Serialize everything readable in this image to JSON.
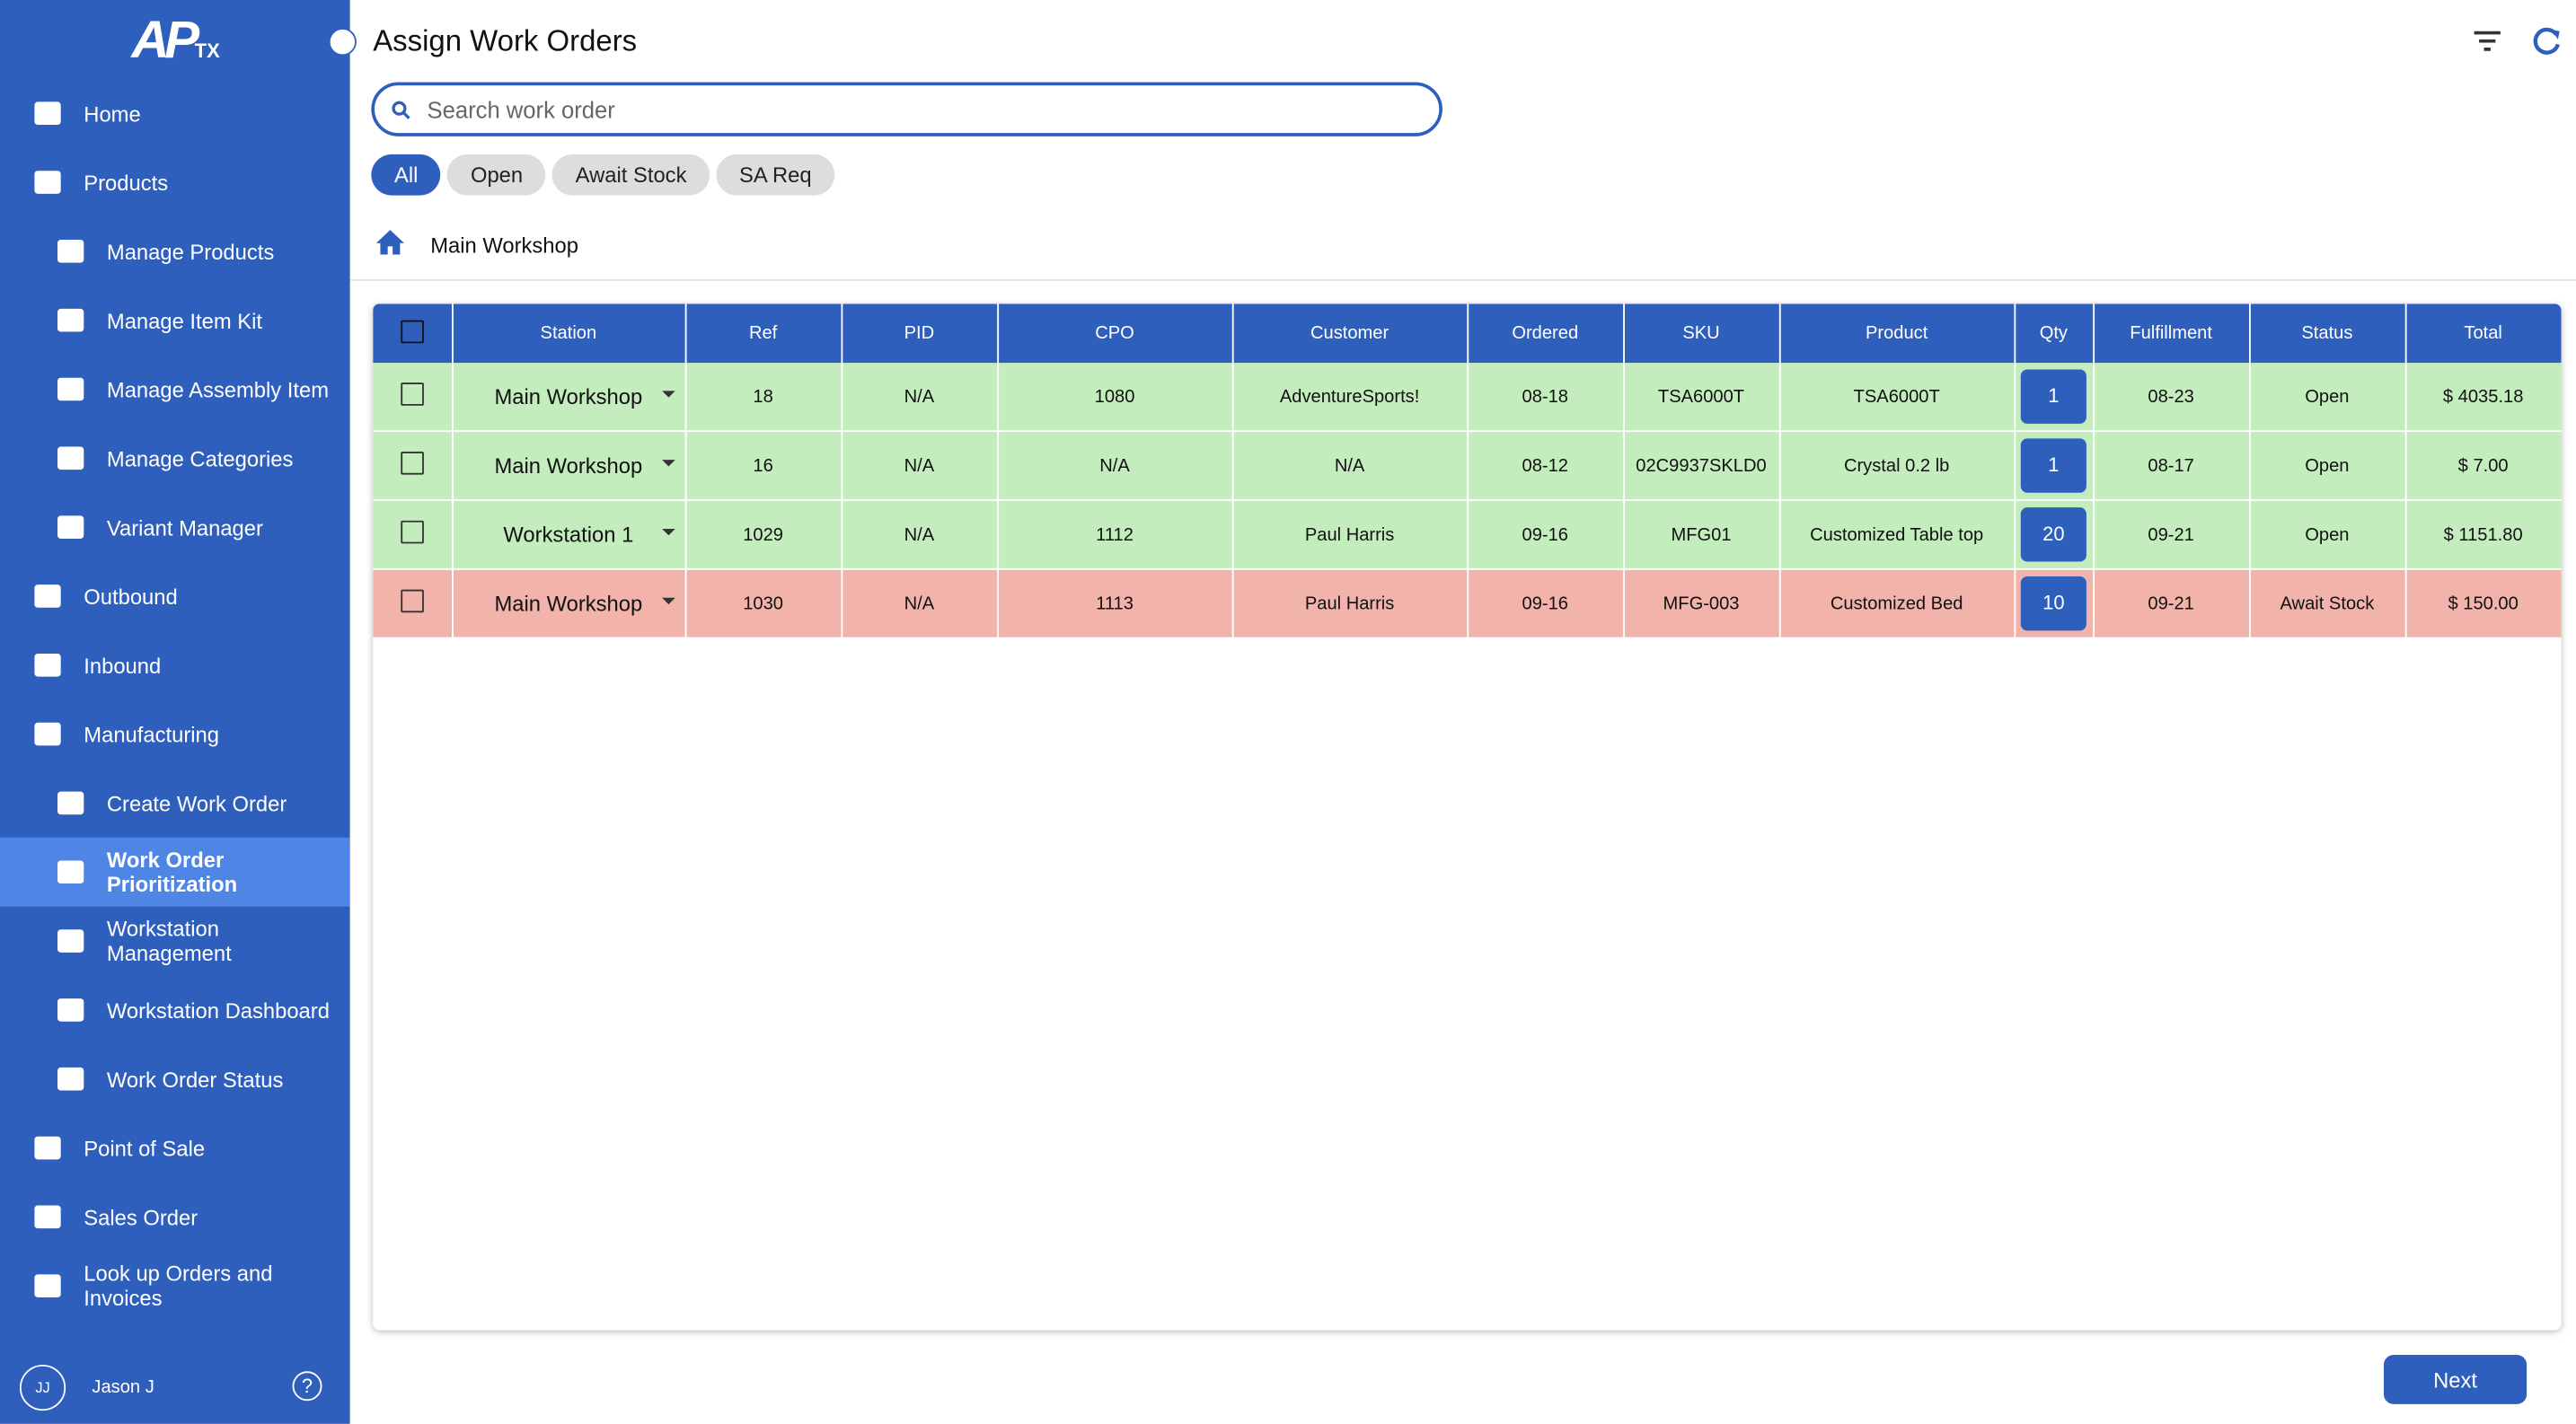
{
  "sidebar": {
    "logo": "AP",
    "logo_sub": "TX",
    "nav": [
      {
        "label": "Home"
      },
      {
        "label": "Products",
        "children": [
          "Manage Products",
          "Manage Item Kit",
          "Manage Assembly Item",
          "Manage Categories",
          "Variant Manager"
        ]
      },
      {
        "label": "Outbound"
      },
      {
        "label": "Inbound"
      },
      {
        "label": "Manufacturing",
        "children": [
          "Create Work Order",
          "Work Order Prioritization",
          "Workstation Management",
          "Workstation Dashboard",
          "Work Order Status"
        ]
      },
      {
        "label": "Point of Sale"
      },
      {
        "label": "Sales Order"
      },
      {
        "label": "Look up Orders and Invoices"
      }
    ],
    "active": "Work Order Prioritization",
    "user": {
      "initials": "JJ",
      "name": "Jason J"
    }
  },
  "header": {
    "title": "Assign Work Orders"
  },
  "search": {
    "placeholder": "Search work order"
  },
  "filters": [
    "All",
    "Open",
    "Await Stock",
    "SA Req"
  ],
  "breadcrumb": "Main Workshop",
  "table": {
    "columns": [
      "Station",
      "Ref",
      "PID",
      "CPO",
      "Customer",
      "Ordered",
      "SKU",
      "Product",
      "Qty",
      "Fulfillment",
      "Status",
      "Total"
    ],
    "rows": [
      {
        "color": "#c4edbd",
        "cells": [
          "Main Workshop",
          "18",
          "N/A",
          "1080",
          "AdventureSports!",
          "08-18",
          "TSA6000T",
          "TSA6000T",
          "1",
          "08-23",
          "Open",
          "$ 4035.18"
        ]
      },
      {
        "color": "#c4edbd",
        "cells": [
          "Main Workshop",
          "16",
          "N/A",
          "N/A",
          "N/A",
          "08-12",
          "02C9937SKLD0",
          "Crystal 0.2 lb",
          "1",
          "08-17",
          "Open",
          "$ 7.00"
        ]
      },
      {
        "color": "#c4edbd",
        "cells": [
          "Workstation 1",
          "1029",
          "N/A",
          "1112",
          "Paul Harris",
          "09-16",
          "MFG01",
          "Customized Table top",
          "20",
          "09-21",
          "Open",
          "$ 1151.80"
        ]
      },
      {
        "color": "#f2b3aa",
        "cells": [
          "Main Workshop",
          "1030",
          "N/A",
          "1113",
          "Paul Harris",
          "09-16",
          "MFG-003",
          "Customized Bed",
          "10",
          "09-21",
          "Await Stock",
          "$ 150.00"
        ]
      }
    ]
  },
  "next": "Next"
}
